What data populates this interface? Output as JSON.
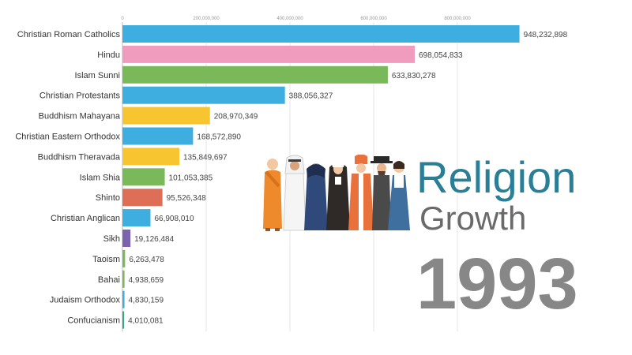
{
  "title": {
    "line1": "Religion",
    "line2": "Growth",
    "year": "1993"
  },
  "chart_data": {
    "type": "bar",
    "orientation": "horizontal",
    "title": "Religion Growth",
    "period": "1993",
    "xlim": [
      0,
      1000000000
    ],
    "xticks": [
      0,
      200000000,
      400000000,
      600000000,
      800000000
    ],
    "xtick_labels": [
      "0",
      "200,000,000",
      "400,000,000",
      "600,000,000",
      "800,000,000"
    ],
    "grid": true,
    "categories": [
      "Christian Roman Catholics",
      "Hindu",
      "Islam Sunni",
      "Christian Protestants",
      "Buddhism Mahayana",
      "Christian Eastern Orthodox",
      "Buddhism Theravada",
      "Islam Shia",
      "Shinto",
      "Christian Anglican",
      "Sikh",
      "Taoism",
      "Bahai",
      "Judaism Orthodox",
      "Confucianism"
    ],
    "values": [
      948232898,
      698054833,
      633830278,
      388056327,
      208970349,
      168572890,
      135849697,
      101053385,
      95526348,
      66908010,
      19126484,
      6263478,
      4938659,
      4830159,
      4010081
    ],
    "value_labels": [
      "948,232,898",
      "698,054,833",
      "633,830,278",
      "388,056,327",
      "208,970,349",
      "168,572,890",
      "135,849,697",
      "101,053,385",
      "95,526,348",
      "66,908,010",
      "19,126,484",
      "6,263,478",
      "4,938,659",
      "4,830,159",
      "4,010,081"
    ],
    "colors": [
      "#3eaee0",
      "#f09cbf",
      "#7ab95a",
      "#3eaee0",
      "#f7c530",
      "#3eaee0",
      "#f7c530",
      "#7ab95a",
      "#de6f56",
      "#3eaee0",
      "#7b63ad",
      "#7ab95a",
      "#7ab95a",
      "#3eaee0",
      "#3aa584"
    ]
  },
  "illustration": {
    "icon": "people-of-different-religions-icon",
    "figure_colors": [
      "#ee8a2c",
      "#f2f2f2",
      "#2f4a7a",
      "#5a3b2e",
      "#e8713c",
      "#4a4a4a",
      "#3f6f9e"
    ]
  }
}
